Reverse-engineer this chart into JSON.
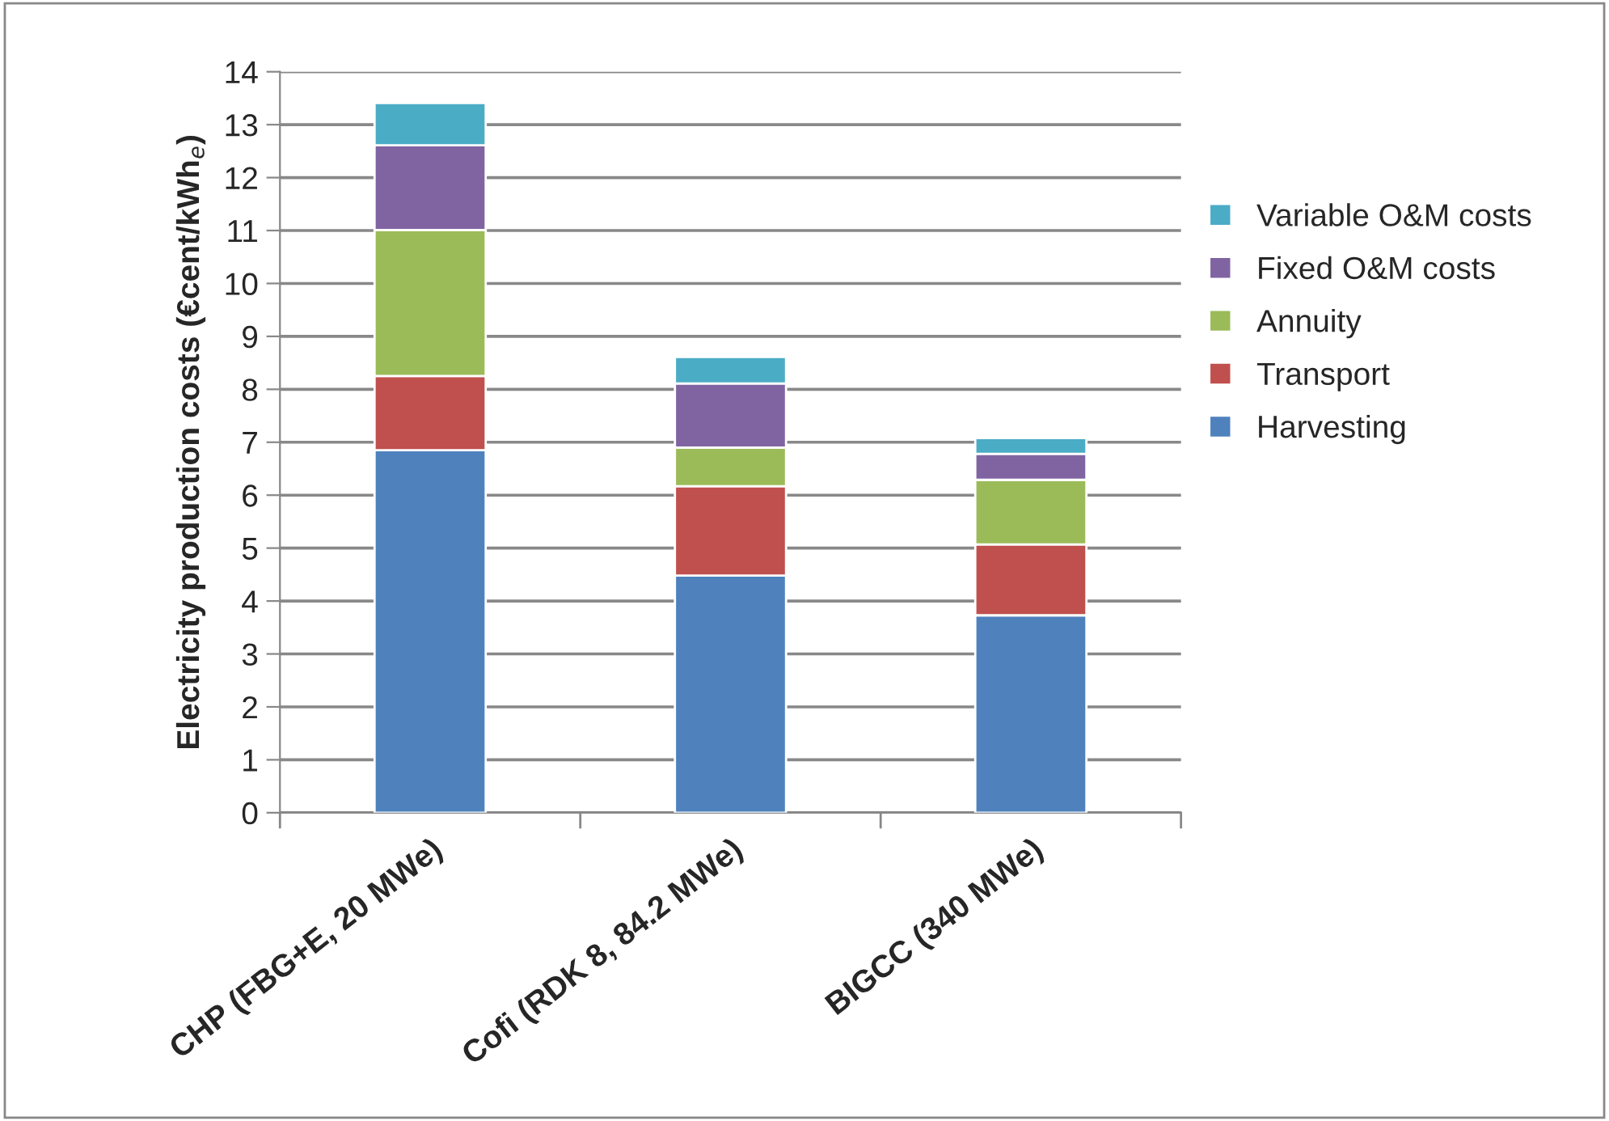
{
  "chart_data": {
    "type": "bar",
    "stacked": true,
    "ylabel": "Electricity production costs (€cent/kWh$_{e}$)",
    "categories": [
      "CHP (FBG+E, 20 MWe)",
      "Cofi (RDK 8, 84.2 MWe)",
      "BIGCC (340 MWe)"
    ],
    "series": [
      {
        "name": "Harvesting",
        "color": "#4f81bd",
        "values": [
          6.85,
          4.48,
          3.73
        ]
      },
      {
        "name": "Transport",
        "color": "#c0504d",
        "values": [
          1.4,
          1.69,
          1.34
        ]
      },
      {
        "name": "Annuity",
        "color": "#9bbb59",
        "values": [
          2.76,
          0.73,
          1.22
        ]
      },
      {
        "name": "Fixed O&M costs",
        "color": "#8064a2",
        "values": [
          1.6,
          1.21,
          0.49
        ]
      },
      {
        "name": "Variable O&M costs",
        "color": "#4bacc6",
        "values": [
          0.8,
          0.5,
          0.3
        ]
      }
    ],
    "ylim": [
      0,
      14
    ],
    "yticks": [
      0,
      1,
      2,
      3,
      4,
      5,
      6,
      7,
      8,
      9,
      10,
      11,
      12,
      13,
      14
    ],
    "grid": "y",
    "legend": "right"
  }
}
